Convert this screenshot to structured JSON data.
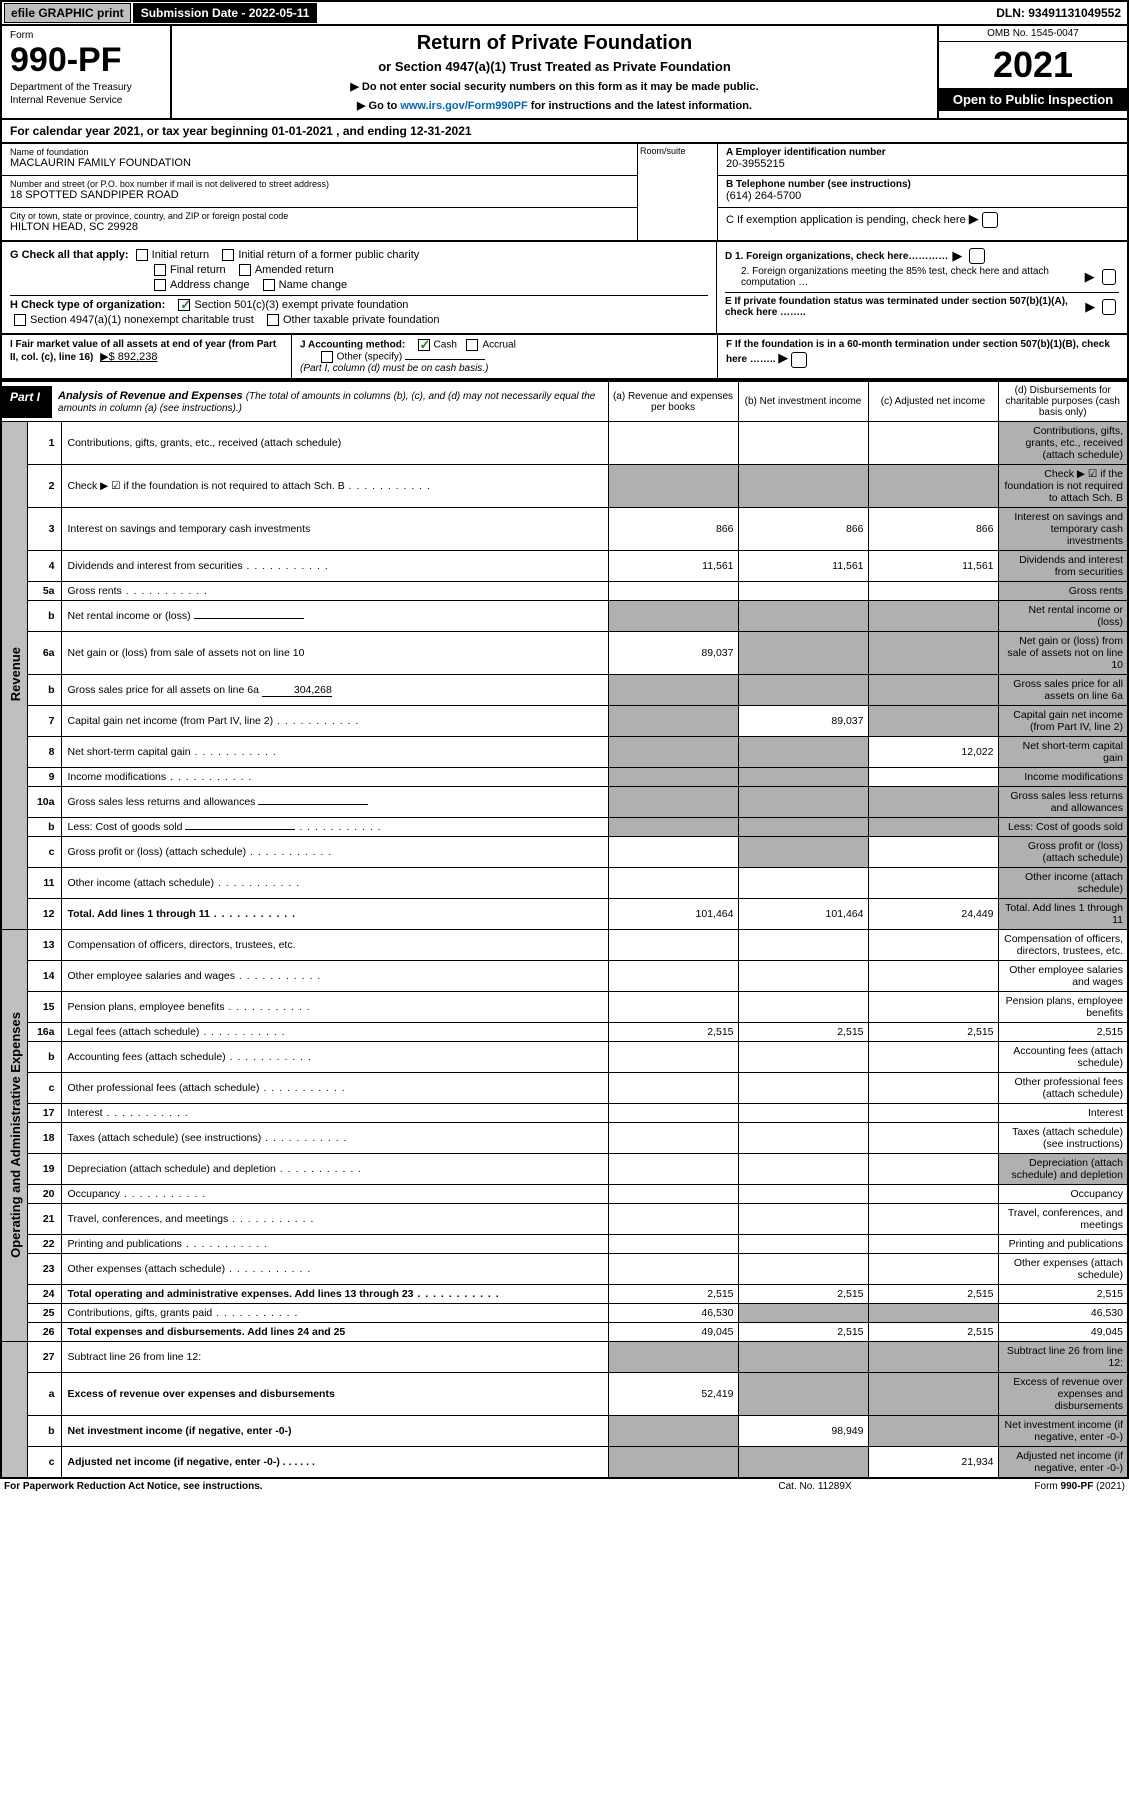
{
  "topbar": {
    "efile": "efile GRAPHIC print",
    "submission_label": "Submission Date - 2022-05-11",
    "dln": "DLN: 93491131049552"
  },
  "header": {
    "form": "Form",
    "form_num": "990-PF",
    "dept": "Department of the Treasury",
    "irs": "Internal Revenue Service",
    "title": "Return of Private Foundation",
    "sub1": "or Section 4947(a)(1) Trust Treated as Private Foundation",
    "bullet1": "▶ Do not enter social security numbers on this form as it may be made public.",
    "bullet2": "▶ Go to www.irs.gov/Form990PF for instructions and the latest information.",
    "link": "www.irs.gov/Form990PF",
    "omb": "OMB No. 1545-0047",
    "year": "2021",
    "open": "Open to Public Inspection"
  },
  "cal": "For calendar year 2021, or tax year beginning 01-01-2021                              , and ending 12-31-2021",
  "info": {
    "name_lbl": "Name of foundation",
    "name": "MACLAURIN FAMILY FOUNDATION",
    "addr_lbl": "Number and street (or P.O. box number if mail is not delivered to street address)",
    "addr": "18 SPOTTED SANDPIPER ROAD",
    "room_lbl": "Room/suite",
    "city_lbl": "City or town, state or province, country, and ZIP or foreign postal code",
    "city": "HILTON HEAD, SC  29928",
    "A_lbl": "A Employer identification number",
    "A": "20-3955215",
    "B_lbl": "B Telephone number (see instructions)",
    "B": "(614) 264-5700",
    "C": "C If exemption application is pending, check here",
    "D1": "D 1. Foreign organizations, check here…………",
    "D2": "2. Foreign organizations meeting the 85% test, check here and attach computation …",
    "E": "E  If private foundation status was terminated under section 507(b)(1)(A), check here ……..",
    "F": "F  If the foundation is in a 60-month termination under section 507(b)(1)(B), check here ……..",
    "G": "G Check all that apply:",
    "G_items": [
      "Initial return",
      "Initial return of a former public charity",
      "Final return",
      "Amended return",
      "Address change",
      "Name change"
    ],
    "H": "H Check type of organization:",
    "H_501": "Section 501(c)(3) exempt private foundation",
    "H_4947": "Section 4947(a)(1) nonexempt charitable trust",
    "H_other": "Other taxable private foundation",
    "I": "I Fair market value of all assets at end of year (from Part II, col. (c), line 16)",
    "I_amt": "▶$  892,238",
    "J": "J Accounting method:",
    "J_cash": "Cash",
    "J_accrual": "Accrual",
    "J_other": "Other (specify)",
    "J_note": "(Part I, column (d) must be on cash basis.)"
  },
  "part1": {
    "tag": "Part I",
    "title": "Analysis of Revenue and Expenses",
    "note": "(The total of amounts in columns (b), (c), and (d) may not necessarily equal the amounts in column (a) (see instructions).)",
    "col_a": "(a)  Revenue and expenses per books",
    "col_b": "(b)  Net investment income",
    "col_c": "(c)  Adjusted net income",
    "col_d": "(d)  Disbursements for charitable purposes (cash basis only)"
  },
  "vlabels": {
    "revenue": "Revenue",
    "opex": "Operating and Administrative Expenses"
  },
  "rows": [
    {
      "n": "1",
      "d": "Contributions, gifts, grants, etc., received (attach schedule)",
      "a": "",
      "b": "",
      "c": "",
      "shade": [
        "d"
      ]
    },
    {
      "n": "2",
      "d": "Check ▶ ☑ if the foundation is not required to attach Sch. B",
      "dots": true,
      "a": "",
      "shade": [
        "a",
        "b",
        "c",
        "d"
      ]
    },
    {
      "n": "3",
      "d": "Interest on savings and temporary cash investments",
      "a": "866",
      "b": "866",
      "c": "866",
      "shade": [
        "d"
      ]
    },
    {
      "n": "4",
      "d": "Dividends and interest from securities",
      "dots": true,
      "a": "11,561",
      "b": "11,561",
      "c": "11,561",
      "shade": [
        "d"
      ]
    },
    {
      "n": "5a",
      "d": "Gross rents",
      "dots": true,
      "shade": [
        "d"
      ]
    },
    {
      "n": "b",
      "d": "Net rental income or (loss)",
      "inline_box": true,
      "shade": [
        "a",
        "b",
        "c",
        "d"
      ]
    },
    {
      "n": "6a",
      "d": "Net gain or (loss) from sale of assets not on line 10",
      "a": "89,037",
      "shade": [
        "b",
        "c",
        "d"
      ]
    },
    {
      "n": "b",
      "d": "Gross sales price for all assets on line 6a",
      "inline_val": "304,268",
      "shade": [
        "a",
        "b",
        "c",
        "d"
      ]
    },
    {
      "n": "7",
      "d": "Capital gain net income (from Part IV, line 2)",
      "dots": true,
      "b": "89,037",
      "shade": [
        "a",
        "c",
        "d"
      ]
    },
    {
      "n": "8",
      "d": "Net short-term capital gain",
      "dots": true,
      "c": "12,022",
      "shade": [
        "a",
        "b",
        "d"
      ]
    },
    {
      "n": "9",
      "d": "Income modifications",
      "dots": true,
      "shade": [
        "a",
        "b",
        "d"
      ]
    },
    {
      "n": "10a",
      "d": "Gross sales less returns and allowances",
      "inline_box": true,
      "shade": [
        "a",
        "b",
        "c",
        "d"
      ]
    },
    {
      "n": "b",
      "d": "Less: Cost of goods sold",
      "dots": true,
      "inline_box": true,
      "shade": [
        "a",
        "b",
        "c",
        "d"
      ]
    },
    {
      "n": "c",
      "d": "Gross profit or (loss) (attach schedule)",
      "dots": true,
      "shade": [
        "b",
        "d"
      ]
    },
    {
      "n": "11",
      "d": "Other income (attach schedule)",
      "dots": true,
      "shade": [
        "d"
      ]
    },
    {
      "n": "12",
      "d": "Total. Add lines 1 through 11",
      "bold": true,
      "dots": true,
      "a": "101,464",
      "b": "101,464",
      "c": "24,449",
      "shade": [
        "d"
      ]
    },
    {
      "n": "13",
      "d": "Compensation of officers, directors, trustees, etc."
    },
    {
      "n": "14",
      "d": "Other employee salaries and wages",
      "dots": true
    },
    {
      "n": "15",
      "d": "Pension plans, employee benefits",
      "dots": true
    },
    {
      "n": "16a",
      "d": "Legal fees (attach schedule)",
      "dots": true,
      "a": "2,515",
      "b": "2,515",
      "c": "2,515",
      "dsb": "2,515"
    },
    {
      "n": "b",
      "d": "Accounting fees (attach schedule)",
      "dots": true
    },
    {
      "n": "c",
      "d": "Other professional fees (attach schedule)",
      "dots": true
    },
    {
      "n": "17",
      "d": "Interest",
      "dots": true
    },
    {
      "n": "18",
      "d": "Taxes (attach schedule) (see instructions)",
      "dots": true
    },
    {
      "n": "19",
      "d": "Depreciation (attach schedule) and depletion",
      "dots": true,
      "shade": [
        "d"
      ]
    },
    {
      "n": "20",
      "d": "Occupancy",
      "dots": true
    },
    {
      "n": "21",
      "d": "Travel, conferences, and meetings",
      "dots": true
    },
    {
      "n": "22",
      "d": "Printing and publications",
      "dots": true
    },
    {
      "n": "23",
      "d": "Other expenses (attach schedule)",
      "dots": true
    },
    {
      "n": "24",
      "d": "Total operating and administrative expenses. Add lines 13 through 23",
      "bold": true,
      "dots": true,
      "a": "2,515",
      "b": "2,515",
      "c": "2,515",
      "dsb": "2,515"
    },
    {
      "n": "25",
      "d": "Contributions, gifts, grants paid",
      "dots": true,
      "a": "46,530",
      "shade": [
        "b",
        "c"
      ],
      "dsb": "46,530"
    },
    {
      "n": "26",
      "d": "Total expenses and disbursements. Add lines 24 and 25",
      "bold": true,
      "a": "49,045",
      "b": "2,515",
      "c": "2,515",
      "dsb": "49,045"
    }
  ],
  "rows27": [
    {
      "n": "27",
      "d": "Subtract line 26 from line 12:",
      "shade": [
        "a",
        "b",
        "c",
        "d"
      ]
    },
    {
      "n": "a",
      "d": "Excess of revenue over expenses and disbursements",
      "bold": true,
      "a": "52,419",
      "shade": [
        "b",
        "c",
        "d"
      ]
    },
    {
      "n": "b",
      "d": "Net investment income (if negative, enter -0-)",
      "bold": true,
      "b": "98,949",
      "shade": [
        "a",
        "c",
        "d"
      ]
    },
    {
      "n": "c",
      "d": "Adjusted net income (if negative, enter -0-)",
      "bold": true,
      "dots": true,
      "c": "21,934",
      "shade": [
        "a",
        "b",
        "d"
      ]
    }
  ],
  "footer": {
    "left": "For Paperwork Reduction Act Notice, see instructions.",
    "mid": "Cat. No. 11289X",
    "right": "Form 990-PF (2021)"
  }
}
